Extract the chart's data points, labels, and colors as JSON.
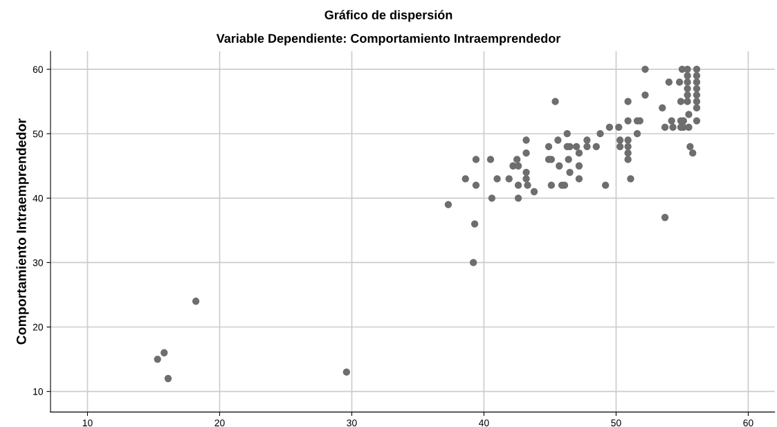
{
  "chart_data": {
    "type": "scatter",
    "title": "Gráfico de dispersión",
    "subtitle": "Variable Dependiente: Comportamiento Intraemprendedor",
    "ylabel": "Comportamiento Intraemprendedor",
    "x": [
      15.3,
      15.8,
      16.1,
      18.2,
      29.6,
      37.3,
      38.6,
      39.4,
      39.4,
      39.3,
      39.2,
      40.5,
      40.6,
      41.0,
      41.9,
      42.2,
      42.6,
      42.5,
      42.6,
      42.6,
      43.2,
      43.2,
      43.2,
      43.2,
      43.3,
      43.8,
      44.9,
      44.9,
      45.1,
      45.1,
      45.4,
      45.6,
      45.7,
      45.9,
      46.1,
      46.3,
      46.3,
      46.4,
      46.5,
      46.5,
      47.0,
      47.2,
      47.2,
      47.2,
      47.8,
      47.8,
      48.5,
      48.8,
      49.2,
      49.5,
      50.2,
      50.3,
      50.3,
      50.9,
      50.9,
      50.9,
      50.9,
      50.9,
      50.9,
      51.1,
      51.6,
      51.8,
      51.6,
      52.2,
      52.2,
      53.5,
      53.7,
      53.7,
      54.0,
      54.2,
      54.3,
      54.8,
      54.9,
      54.9,
      54.9,
      55.1,
      55.1,
      55.0,
      55.4,
      55.4,
      55.4,
      55.4,
      55.4,
      55.4,
      55.5,
      55.5,
      55.6,
      55.8,
      56.1,
      56.1,
      56.1,
      56.1,
      56.1,
      56.1,
      56.1,
      56.1
    ],
    "values": [
      15,
      16,
      12,
      24,
      13,
      39,
      43,
      46,
      42,
      36,
      30,
      46,
      40,
      43,
      43,
      45,
      45,
      46,
      42,
      40,
      49,
      47,
      44,
      43,
      42,
      41,
      48,
      46,
      46,
      42,
      55,
      49,
      45,
      42,
      42,
      50,
      48,
      46,
      44,
      48,
      48,
      47,
      45,
      43,
      49,
      48,
      48,
      50,
      42,
      51,
      51,
      49,
      48,
      55,
      52,
      49,
      48,
      47,
      46,
      43,
      52,
      52,
      50,
      60,
      56,
      54,
      37,
      51,
      58,
      52,
      51,
      58,
      55,
      52,
      51,
      52,
      51,
      60,
      60,
      59,
      58,
      57,
      56,
      55,
      53,
      51,
      48,
      47,
      60,
      59,
      58,
      57,
      56,
      55,
      54,
      52
    ],
    "color": "#6e6e6e",
    "marker": "circle",
    "xlim": [
      7.2,
      62.0
    ],
    "xticks": [
      10,
      20,
      30,
      40,
      50,
      60
    ],
    "ylim": [
      6.8,
      62.8
    ],
    "yticks": [
      10,
      20,
      30,
      40,
      50,
      60
    ],
    "grid": true
  }
}
